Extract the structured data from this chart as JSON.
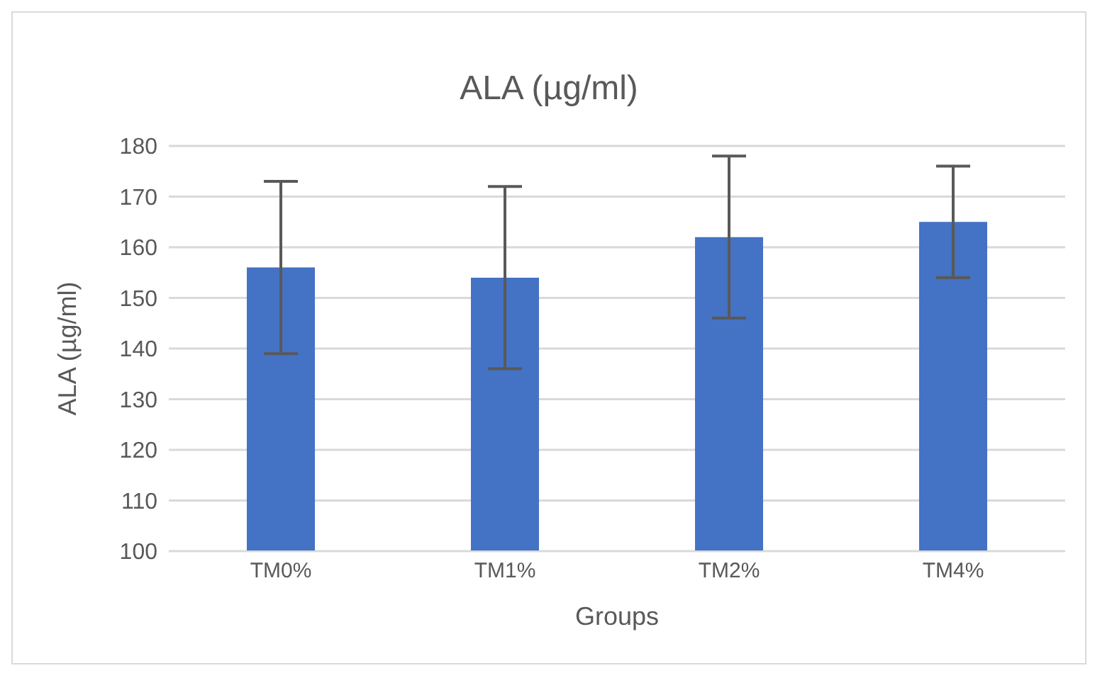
{
  "chart_data": {
    "type": "bar",
    "title": "ALA (µg/ml)",
    "xlabel": "Groups",
    "ylabel": "ALA (µg/ml)",
    "categories": [
      "TM0%",
      "TM1%",
      "TM2%",
      "TM4%"
    ],
    "values": [
      156,
      154,
      162,
      165
    ],
    "errors": [
      17,
      18,
      16,
      11
    ],
    "color": "#4472c4",
    "ylim": [
      100,
      180
    ],
    "yticks": [
      100,
      110,
      120,
      130,
      140,
      150,
      160,
      170,
      180
    ],
    "grid": "y"
  }
}
